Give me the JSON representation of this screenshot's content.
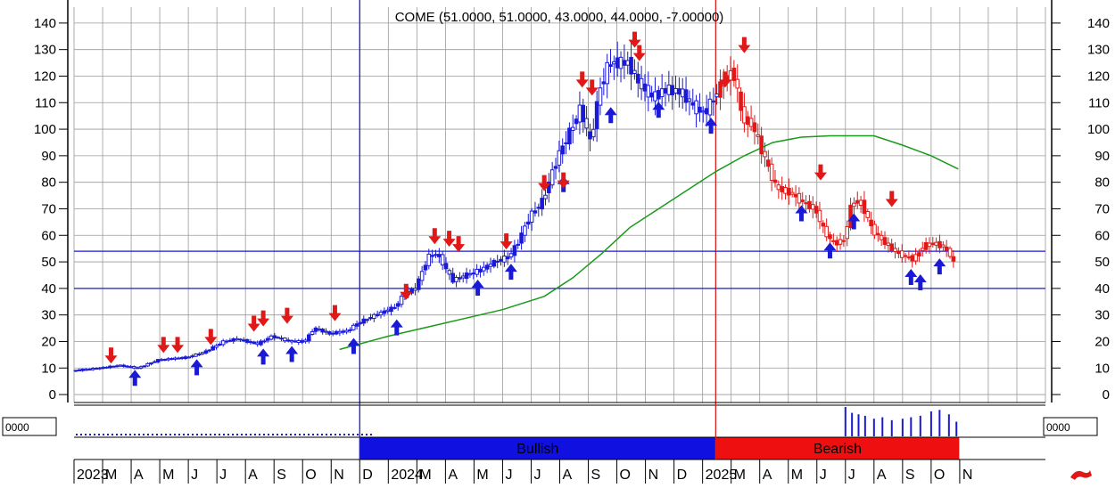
{
  "chart_data": {
    "type": "candlestick",
    "title": "COME (51.0000, 51.0000, 43.0000, 44.0000, -7.00000)",
    "yaxis": {
      "ticks": [
        0,
        10,
        20,
        30,
        40,
        50,
        60,
        70,
        80,
        90,
        100,
        110,
        120,
        130,
        140
      ],
      "range": [
        -3,
        146
      ]
    },
    "xaxis": {
      "month_labels": [
        "2023",
        "M",
        "A",
        "M",
        "J",
        "J",
        "A",
        "S",
        "O",
        "N",
        "D",
        "2024",
        "M",
        "A",
        "M",
        "J",
        "J",
        "A",
        "S",
        "O",
        "N",
        "D",
        "2025",
        "M",
        "A",
        "M",
        "J",
        "J",
        "A",
        "S",
        "O",
        "N"
      ],
      "start": "2023-02",
      "end": "2025-11"
    },
    "price_path": [
      [
        "2023-02-01",
        9
      ],
      [
        "2023-03-01",
        10
      ],
      [
        "2023-03-20",
        11
      ],
      [
        "2023-04-10",
        10
      ],
      [
        "2023-05-01",
        13
      ],
      [
        "2023-06-01",
        14
      ],
      [
        "2023-06-20",
        16
      ],
      [
        "2023-07-10",
        20
      ],
      [
        "2023-07-25",
        21
      ],
      [
        "2023-08-15",
        19
      ],
      [
        "2023-09-01",
        22
      ],
      [
        "2023-09-20",
        20
      ],
      [
        "2023-10-05",
        20
      ],
      [
        "2023-10-15",
        25
      ],
      [
        "2023-11-01",
        23
      ],
      [
        "2023-11-20",
        24
      ],
      [
        "2023-12-01",
        27
      ],
      [
        "2023-12-20",
        30
      ],
      [
        "2024-01-10",
        33
      ],
      [
        "2024-01-20",
        38
      ],
      [
        "2024-02-01",
        40
      ],
      [
        "2024-02-15",
        52
      ],
      [
        "2024-02-25",
        53
      ],
      [
        "2024-03-10",
        43
      ],
      [
        "2024-03-25",
        45
      ],
      [
        "2024-04-10",
        47
      ],
      [
        "2024-04-25",
        50
      ],
      [
        "2024-05-10",
        52
      ],
      [
        "2024-05-20",
        58
      ],
      [
        "2024-06-01",
        67
      ],
      [
        "2024-06-15",
        73
      ],
      [
        "2024-07-01",
        90
      ],
      [
        "2024-07-15",
        100
      ],
      [
        "2024-07-25",
        108
      ],
      [
        "2024-08-05",
        95
      ],
      [
        "2024-08-15",
        115
      ],
      [
        "2024-08-25",
        125
      ],
      [
        "2024-09-15",
        125
      ],
      [
        "2024-09-25",
        118
      ],
      [
        "2024-10-10",
        112
      ],
      [
        "2024-10-25",
        115
      ],
      [
        "2024-11-10",
        114
      ],
      [
        "2024-11-25",
        108
      ],
      [
        "2024-12-05",
        106
      ],
      [
        "2024-12-15",
        112
      ],
      [
        "2024-12-25",
        118
      ],
      [
        "2025-01-05",
        122
      ],
      [
        "2025-01-15",
        104
      ],
      [
        "2025-01-25",
        102
      ],
      [
        "2025-02-05",
        92
      ],
      [
        "2025-02-20",
        78
      ],
      [
        "2025-03-05",
        76
      ],
      [
        "2025-03-20",
        72
      ],
      [
        "2025-04-01",
        70
      ],
      [
        "2025-04-10",
        62
      ],
      [
        "2025-04-20",
        57
      ],
      [
        "2025-05-01",
        58
      ],
      [
        "2025-05-10",
        73
      ],
      [
        "2025-05-20",
        72
      ],
      [
        "2025-06-01",
        62
      ],
      [
        "2025-06-15",
        57
      ],
      [
        "2025-06-25",
        54
      ],
      [
        "2025-07-05",
        52
      ],
      [
        "2025-07-15",
        51
      ],
      [
        "2025-07-25",
        56
      ],
      [
        "2025-08-05",
        57
      ],
      [
        "2025-08-15",
        56
      ],
      [
        "2025-08-25",
        52
      ],
      [
        "2025-08-30",
        44
      ]
    ],
    "moving_average": [
      [
        "2023-11-10",
        17
      ],
      [
        "2024-01-01",
        22
      ],
      [
        "2024-03-01",
        27
      ],
      [
        "2024-05-01",
        32
      ],
      [
        "2024-06-15",
        37
      ],
      [
        "2024-07-15",
        44
      ],
      [
        "2024-08-15",
        53
      ],
      [
        "2024-09-15",
        63
      ],
      [
        "2024-10-15",
        70
      ],
      [
        "2024-11-15",
        77
      ],
      [
        "2024-12-15",
        84
      ],
      [
        "2025-01-15",
        90
      ],
      [
        "2025-02-15",
        95
      ],
      [
        "2025-03-15",
        97
      ],
      [
        "2025-04-15",
        97.5
      ],
      [
        "2025-06-01",
        97.5
      ],
      [
        "2025-07-01",
        94
      ],
      [
        "2025-08-01",
        90
      ],
      [
        "2025-08-30",
        85
      ]
    ],
    "horizontal_lines": [
      54,
      40
    ],
    "vertical_markers": [
      {
        "date": "2023-12-01",
        "color": "#1a1ad6"
      },
      {
        "date": "2024-12-15",
        "color": "#d62020"
      }
    ],
    "buy_signals": [
      [
        "2023-04-05",
        10
      ],
      [
        "2023-06-10",
        14
      ],
      [
        "2023-08-20",
        18
      ],
      [
        "2023-09-20",
        19
      ],
      [
        "2023-11-25",
        22
      ],
      [
        "2024-01-10",
        29
      ],
      [
        "2024-04-05",
        44
      ],
      [
        "2024-05-10",
        50
      ],
      [
        "2024-07-05",
        83
      ],
      [
        "2024-08-25",
        109
      ],
      [
        "2024-10-15",
        111
      ],
      [
        "2024-12-10",
        105
      ],
      [
        "2025-03-15",
        72
      ],
      [
        "2025-04-15",
        58
      ],
      [
        "2025-05-10",
        69
      ],
      [
        "2025-07-10",
        48
      ],
      [
        "2025-07-20",
        46
      ],
      [
        "2025-08-10",
        52
      ]
    ],
    "sell_signals": [
      [
        "2023-03-10",
        11
      ],
      [
        "2023-05-05",
        15
      ],
      [
        "2023-05-20",
        15
      ],
      [
        "2023-06-25",
        18
      ],
      [
        "2023-08-10",
        23
      ],
      [
        "2023-08-20",
        25
      ],
      [
        "2023-09-15",
        26
      ],
      [
        "2023-11-05",
        27
      ],
      [
        "2024-01-20",
        35
      ],
      [
        "2024-02-20",
        56
      ],
      [
        "2024-03-05",
        55
      ],
      [
        "2024-03-15",
        53
      ],
      [
        "2024-05-05",
        54
      ],
      [
        "2024-06-15",
        76
      ],
      [
        "2024-07-05",
        77
      ],
      [
        "2024-07-25",
        115
      ],
      [
        "2024-08-05",
        112
      ],
      [
        "2024-09-20",
        130
      ],
      [
        "2024-09-25",
        125
      ],
      [
        "2024-12-25",
        115
      ],
      [
        "2025-01-15",
        128
      ],
      [
        "2025-04-05",
        80
      ],
      [
        "2025-06-20",
        70
      ]
    ],
    "volume_bars": [
      [
        "2025-05-01",
        1.0
      ],
      [
        "2025-05-08",
        0.8
      ],
      [
        "2025-05-15",
        0.75
      ],
      [
        "2025-05-22",
        0.7
      ],
      [
        "2025-06-01",
        0.6
      ],
      [
        "2025-06-10",
        0.65
      ],
      [
        "2025-06-20",
        0.55
      ],
      [
        "2025-07-01",
        0.6
      ],
      [
        "2025-07-10",
        0.65
      ],
      [
        "2025-07-20",
        0.7
      ],
      [
        "2025-08-01",
        0.85
      ],
      [
        "2025-08-10",
        0.9
      ],
      [
        "2025-08-20",
        0.75
      ],
      [
        "2025-08-28",
        0.5
      ]
    ],
    "trend_bands": [
      {
        "label": "Bullish",
        "start": "2023-12-01",
        "end": "2024-12-15",
        "color": "#1010e0"
      },
      {
        "label": "Bearish",
        "start": "2024-12-15",
        "end": "2025-08-31",
        "color": "#ee1010"
      }
    ],
    "volume_axis_label": "0000",
    "colors": {
      "up": "#1a1ad6",
      "down": "#e01818",
      "ma": "#1a9a1a",
      "grid": "#9a9a9a"
    }
  }
}
